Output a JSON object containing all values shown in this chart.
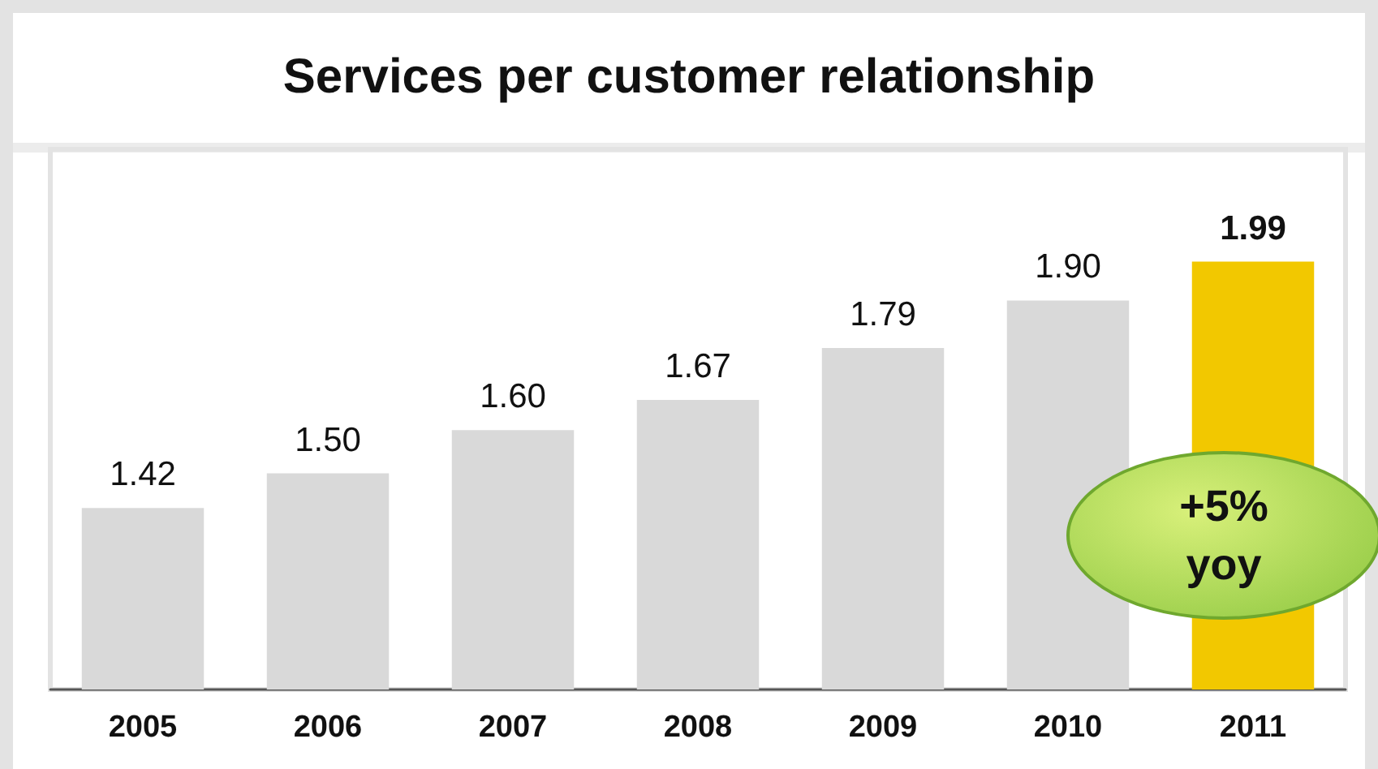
{
  "chart_data": {
    "type": "bar",
    "title": "Services per customer relationship",
    "categories": [
      "2005",
      "2006",
      "2007",
      "2008",
      "2009",
      "2010",
      "2011"
    ],
    "values": [
      1.42,
      1.5,
      1.6,
      1.67,
      1.79,
      1.9,
      1.99
    ],
    "colors": [
      "#d9d9d9",
      "#d9d9d9",
      "#d9d9d9",
      "#d9d9d9",
      "#d9d9d9",
      "#d9d9d9",
      "#f2c800"
    ],
    "value_labels": [
      "1.42",
      "1.50",
      "1.60",
      "1.67",
      "1.79",
      "1.90",
      "1.99"
    ],
    "ylim": [
      1,
      2.25
    ],
    "tick_labels": "x",
    "grid": false,
    "annotations": [
      "+5% yoy"
    ]
  }
}
